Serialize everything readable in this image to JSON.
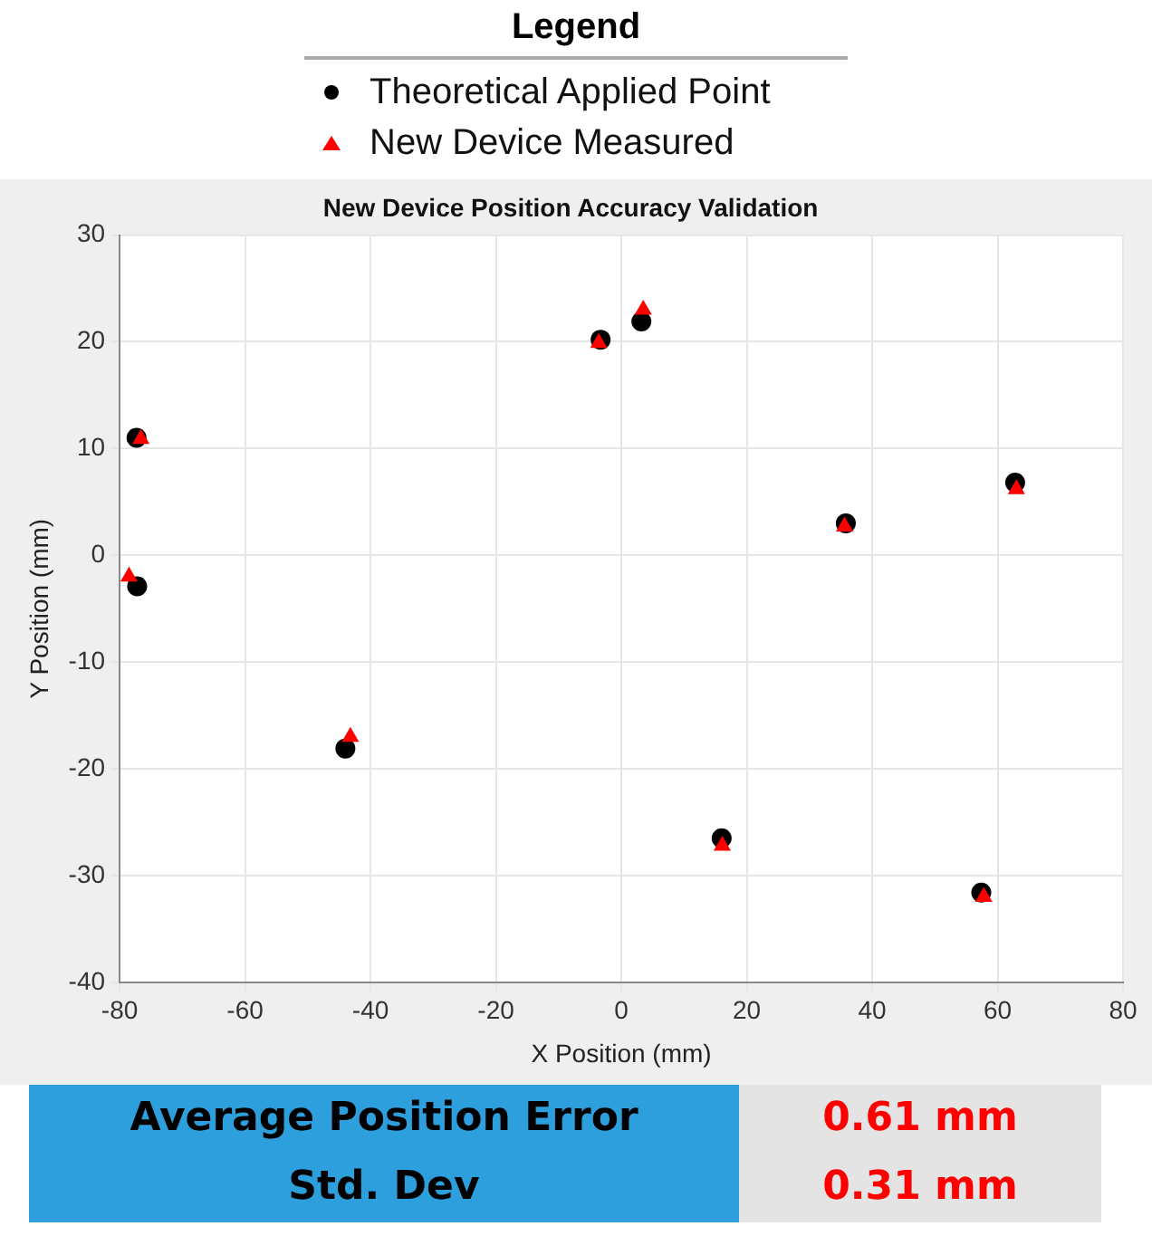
{
  "chart_data": {
    "type": "scatter",
    "title": "New Device Position Accuracy Validation",
    "xlabel": "X Position (mm)",
    "ylabel": "Y Position (mm)",
    "legend_title": "Legend",
    "legend": "top",
    "series": [
      {
        "name": "Theoretical Applied Point",
        "color": "#000000",
        "marker": "circle",
        "x": [
          -77.3,
          -77.2,
          -3.3,
          3.2,
          35.8,
          62.8,
          -44.0,
          16.0,
          57.4
        ],
        "values": [
          11.0,
          -2.9,
          20.2,
          21.9,
          3.0,
          6.8,
          -18.1,
          -26.5,
          -31.6
        ]
      },
      {
        "name": "New Device Measured",
        "color": "#ff0000",
        "marker": "triangle",
        "x": [
          -76.6,
          -78.5,
          -3.6,
          3.5,
          35.6,
          63.0,
          -43.2,
          16.1,
          57.8
        ],
        "values": [
          10.9,
          -2.0,
          19.9,
          23.0,
          2.7,
          6.2,
          -17.0,
          -27.2,
          -32.0
        ]
      }
    ],
    "xlim": [
      -80,
      80
    ],
    "xticks": [
      -80,
      -60,
      -40,
      -20,
      0,
      20,
      40,
      60,
      80
    ],
    "ylim": [
      -40,
      30
    ],
    "yticks": [
      -40,
      -30,
      -20,
      -10,
      0,
      10,
      20,
      30
    ],
    "grid": true,
    "annotations": [
      "Average Position Error",
      "0.61 mm",
      "Std. Dev",
      "0.31 mm"
    ]
  }
}
